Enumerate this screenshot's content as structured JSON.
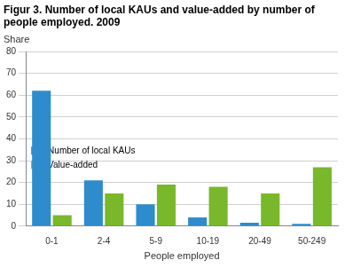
{
  "chart_data": {
    "type": "bar",
    "title": "Figur 3. Number of local KAUs and value-added by number of people employed. 2009",
    "y_label": "Share",
    "x_label": "People employed",
    "categories": [
      "0-1",
      "2-4",
      "5-9",
      "10-19",
      "20-49",
      "50-249"
    ],
    "series": [
      {
        "name": "Number of local KAUs",
        "color": "#2e8ccc",
        "values": [
          62,
          21,
          10,
          4,
          1.5,
          1
        ]
      },
      {
        "name": "Value-added",
        "color": "#78b82a",
        "values": [
          5,
          15,
          19,
          18,
          15,
          27
        ]
      }
    ],
    "ylim": [
      0,
      80
    ],
    "yticks": [
      0,
      10,
      20,
      30,
      40,
      50,
      60,
      70,
      80
    ],
    "grid": true,
    "legend": "upper right"
  }
}
